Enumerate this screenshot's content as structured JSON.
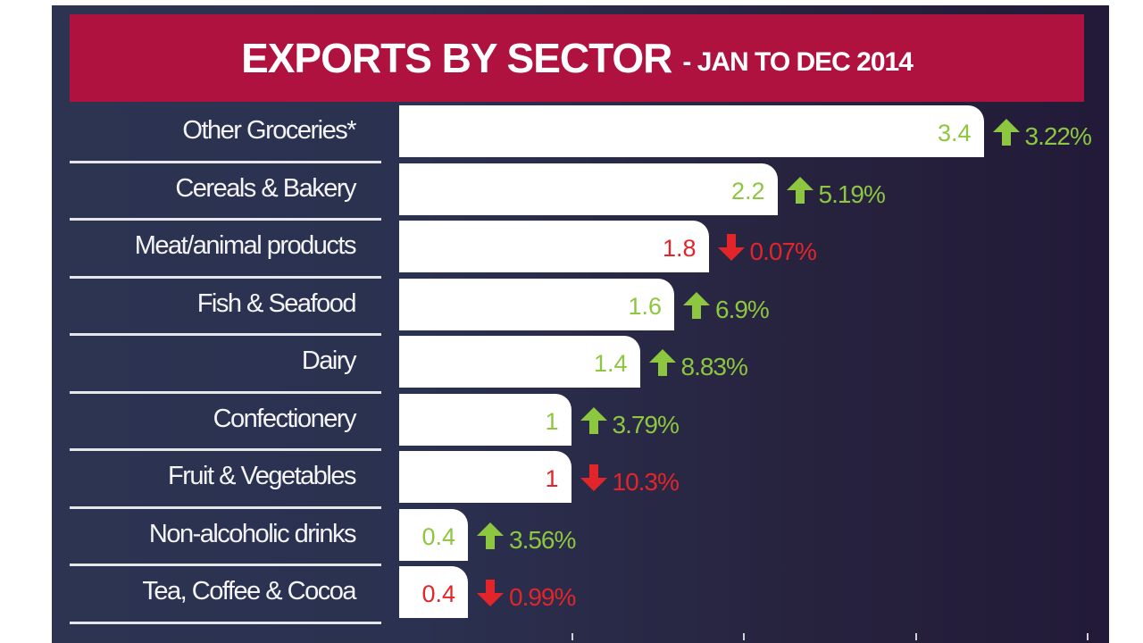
{
  "colors": {
    "banner": "#b0123f",
    "panel": "#2b3150",
    "up": "#8dc63f",
    "down": "#e2252b",
    "bar": "#ffffff"
  },
  "chart_data": {
    "type": "bar",
    "orientation": "horizontal",
    "title": "EXPORTS BY SECTOR",
    "subtitle": "- JAN TO DEC 2014",
    "categories": [
      "Other Groceries*",
      "Cereals & Bakery",
      "Meat/animal products",
      "Fish & Seafood",
      "Dairy",
      "Confectionery",
      "Fruit & Vegetables",
      "Non-alcoholic drinks",
      "Tea, Coffee & Cocoa"
    ],
    "values": [
      3.4,
      2.2,
      1.8,
      1.6,
      1.4,
      1,
      1,
      0.4,
      0.4
    ],
    "value_labels": [
      "3.4",
      "2.2",
      "1.8",
      "1.6",
      "1.4",
      "1",
      "1",
      "0.4",
      "0.4"
    ],
    "changes": [
      "3.22%",
      "5.19%",
      "0.07%",
      "6.9%",
      "8.83%",
      "3.79%",
      "10.3%",
      "3.56%",
      "0.99%"
    ],
    "directions": [
      "up",
      "up",
      "down",
      "up",
      "up",
      "up",
      "down",
      "up",
      "down"
    ],
    "xlim": [
      0,
      4
    ],
    "grid": false,
    "legend": "none"
  }
}
